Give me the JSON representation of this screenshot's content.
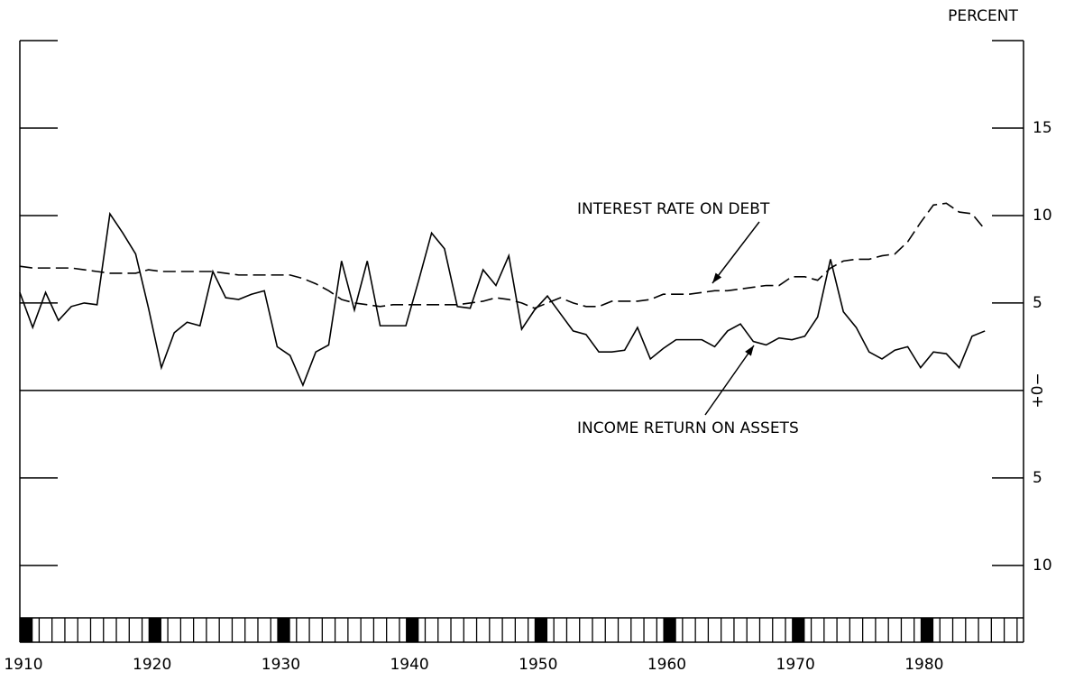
{
  "chart_data": {
    "type": "line",
    "y_axis_label": "PERCENT",
    "x": [
      1910,
      1911,
      1912,
      1913,
      1914,
      1915,
      1916,
      1917,
      1918,
      1919,
      1920,
      1921,
      1922,
      1923,
      1924,
      1925,
      1926,
      1927,
      1928,
      1929,
      1930,
      1931,
      1932,
      1933,
      1934,
      1935,
      1936,
      1937,
      1938,
      1939,
      1940,
      1941,
      1942,
      1943,
      1944,
      1945,
      1946,
      1947,
      1948,
      1949,
      1950,
      1951,
      1952,
      1953,
      1954,
      1955,
      1956,
      1957,
      1958,
      1959,
      1960,
      1961,
      1962,
      1963,
      1964,
      1965,
      1966,
      1967,
      1968,
      1969,
      1970,
      1971,
      1972,
      1973,
      1974,
      1975,
      1976,
      1977,
      1978,
      1979,
      1980,
      1981,
      1982,
      1983,
      1984,
      1985
    ],
    "series": [
      {
        "name": "INCOME RETURN ON ASSETS",
        "color": "#000000",
        "dash": false,
        "values": [
          5.6,
          3.6,
          5.6,
          4.0,
          4.8,
          5.0,
          4.9,
          10.1,
          9.0,
          7.8,
          4.7,
          1.3,
          3.3,
          3.9,
          3.7,
          6.8,
          5.3,
          5.2,
          5.5,
          5.7,
          2.5,
          2.0,
          0.3,
          2.2,
          2.6,
          7.4,
          4.6,
          7.4,
          3.7,
          3.7,
          3.7,
          6.3,
          9.0,
          8.1,
          4.8,
          4.7,
          6.9,
          6.0,
          7.7,
          3.5,
          4.6,
          5.4,
          4.4,
          3.4,
          3.2,
          2.2,
          2.2,
          2.3,
          3.6,
          1.8,
          2.4,
          2.9,
          2.9,
          2.9,
          2.5,
          3.4,
          3.8,
          2.8,
          2.6,
          3.0,
          2.9,
          3.1,
          4.2,
          7.5,
          4.5,
          3.6,
          2.2,
          1.8,
          2.3,
          2.5,
          1.3,
          2.2,
          2.1,
          1.3,
          3.1,
          3.4
        ]
      },
      {
        "name": "INTEREST RATE ON DEBT",
        "color": "#000000",
        "dash": true,
        "values": [
          7.1,
          7.0,
          7.0,
          7.0,
          7.0,
          6.9,
          6.8,
          6.7,
          6.7,
          6.7,
          6.9,
          6.8,
          6.8,
          6.8,
          6.8,
          6.8,
          6.7,
          6.6,
          6.6,
          6.6,
          6.6,
          6.6,
          6.4,
          6.1,
          5.7,
          5.2,
          5.0,
          4.9,
          4.8,
          4.9,
          4.9,
          4.9,
          4.9,
          4.9,
          4.9,
          5.0,
          5.1,
          5.3,
          5.2,
          5.0,
          4.7,
          5.0,
          5.3,
          5.0,
          4.8,
          4.8,
          5.1,
          5.1,
          5.1,
          5.2,
          5.5,
          5.5,
          5.5,
          5.6,
          5.7,
          5.7,
          5.8,
          5.9,
          6.0,
          6.0,
          6.5,
          6.5,
          6.3,
          7.0,
          7.4,
          7.5,
          7.5,
          7.7,
          7.8,
          8.5,
          9.6,
          10.6,
          10.7,
          10.2,
          10.1,
          9.2
        ]
      }
    ],
    "xlim": [
      1910,
      1988
    ],
    "xticks": [
      1910,
      1920,
      1930,
      1940,
      1950,
      1960,
      1970,
      1980
    ],
    "ylim": [
      -13,
      20
    ],
    "yticks": [
      {
        "value": -10,
        "label": "10"
      },
      {
        "value": -5,
        "label": "5"
      },
      {
        "value": 0,
        "label": "+0−"
      },
      5,
      10,
      15
    ]
  }
}
